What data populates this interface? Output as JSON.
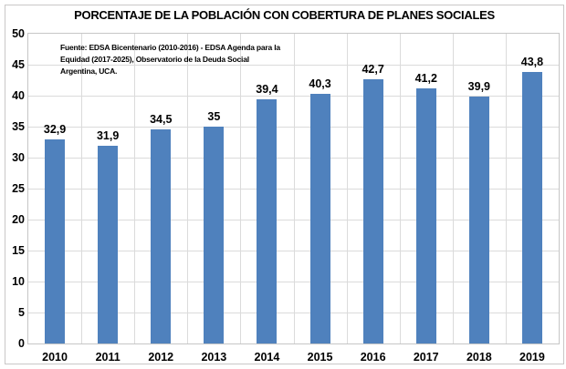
{
  "title": "PORCENTAJE DE LA POBLACIÓN CON COBERTURA DE PLANES SOCIALES",
  "source_note": {
    "line1": "Fuente: EDSA Bicentenario (2010-2016)  - EDSA Agenda para la",
    "line2": "Equidad (2017-2025),  Observatorio de la Deuda Social",
    "line3": "Argentina, UCA."
  },
  "chart_data": {
    "type": "bar",
    "title": "PORCENTAJE DE LA POBLACIÓN CON COBERTURA DE PLANES SOCIALES",
    "categories": [
      "2010",
      "2011",
      "2012",
      "2013",
      "2014",
      "2015",
      "2016",
      "2017",
      "2018",
      "2019"
    ],
    "values": [
      32.9,
      31.9,
      34.5,
      35,
      39.4,
      40.3,
      42.7,
      41.2,
      39.9,
      43.8
    ],
    "value_labels": [
      "32,9",
      "31,9",
      "34,5",
      "35",
      "39,4",
      "40,3",
      "42,7",
      "41,2",
      "39,9",
      "43,8"
    ],
    "xlabel": "",
    "ylabel": "",
    "ylim": [
      0,
      50
    ],
    "yticks": [
      0,
      5,
      10,
      15,
      20,
      25,
      30,
      35,
      40,
      45,
      50
    ],
    "grid": {
      "horizontal": true,
      "vertical_category_boundaries": true
    },
    "legend": "none",
    "decimal_separator": ",",
    "colors": {
      "bar": "#4F81BD",
      "gridline": "#DBDBDB",
      "plot_border": "#C6C6C6",
      "frame_border": "#C9C7C7",
      "text": "#000000",
      "background": "#FFFFFF"
    }
  }
}
